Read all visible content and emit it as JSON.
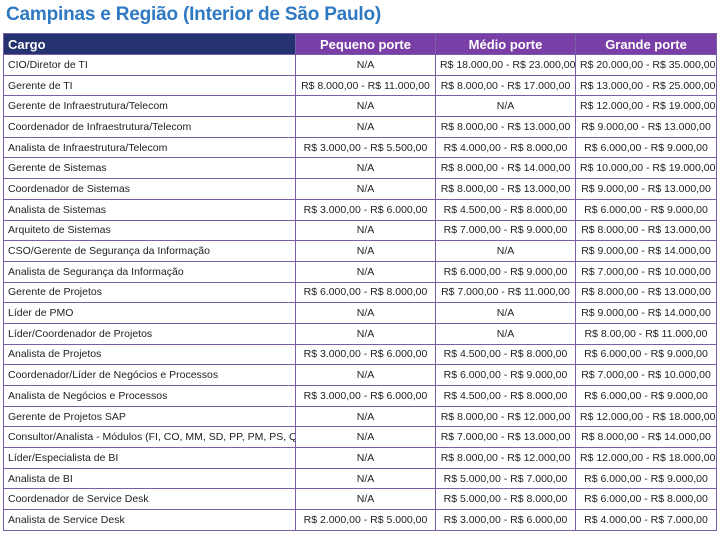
{
  "title": "Campinas e Região (Interior de São Paulo)",
  "colors": {
    "title": "#2f79c3",
    "header_cargo_bg": "#24336f",
    "header_size_bg": "#7a3fa6",
    "border": "#7a5fa8"
  },
  "table": {
    "headers": [
      "Cargo",
      "Pequeno porte",
      "Médio porte",
      "Grande porte"
    ],
    "rows": [
      [
        "CIO/Diretor de TI",
        "N/A",
        "R$ 18.000,00 - R$ 23.000,00",
        "R$ 20.000,00 - R$ 35.000,00"
      ],
      [
        "Gerente de TI",
        "R$ 8.000,00 - R$ 11.000,00",
        "R$ 8.000,00 - R$ 17.000,00",
        "R$ 13.000,00 - R$ 25.000,00"
      ],
      [
        "Gerente de Infraestrutura/Telecom",
        "N/A",
        "N/A",
        "R$ 12.000,00 - R$ 19.000,00"
      ],
      [
        "Coordenador de Infraestrutura/Telecom",
        "N/A",
        "R$ 8.000,00 - R$ 13.000,00",
        "R$ 9.000,00 - R$ 13.000,00"
      ],
      [
        "Analista de Infraestrutura/Telecom",
        "R$ 3.000,00 - R$ 5.500,00",
        "R$ 4.000,00 - R$ 8.000,00",
        "R$ 6.000,00 - R$ 9.000,00"
      ],
      [
        "Gerente de Sistemas",
        "N/A",
        "R$ 8.000,00 - R$ 14.000,00",
        "R$ 10.000,00 - R$ 19.000,00"
      ],
      [
        "Coordenador de Sistemas",
        "N/A",
        "R$ 8.000,00 - R$ 13.000,00",
        "R$ 9.000,00 - R$ 13.000,00"
      ],
      [
        "Analista de Sistemas",
        "R$ 3.000,00 - R$ 6.000,00",
        "R$ 4.500,00 - R$ 8.000,00",
        "R$ 6.000,00 - R$ 9.000,00"
      ],
      [
        "Arquiteto de Sistemas",
        "N/A",
        "R$ 7.000,00 - R$ 9.000,00",
        "R$ 8.000,00 - R$ 13.000,00"
      ],
      [
        "CSO/Gerente de Segurança da Informação",
        "N/A",
        "N/A",
        "R$ 9.000,00 - R$ 14.000,00"
      ],
      [
        "Analista de Segurança da Informação",
        "N/A",
        "R$ 6.000,00 - R$ 9.000,00",
        "R$ 7.000,00 - R$ 10.000,00"
      ],
      [
        "Gerente de Projetos",
        "R$ 6.000,00 - R$ 8.000,00",
        "R$ 7.000,00 - R$ 11.000,00",
        "R$ 8.000,00 - R$ 13.000,00"
      ],
      [
        "Líder de PMO",
        "N/A",
        "N/A",
        "R$ 9.000,00 - R$ 14.000,00"
      ],
      [
        "Líder/Coordenador de Projetos",
        "N/A",
        "N/A",
        "R$ 8.00,00 - R$ 11.000,00"
      ],
      [
        "Analista de Projetos",
        "R$ 3.000,00 - R$ 6.000,00",
        "R$ 4.500,00 - R$ 8.000,00",
        "R$ 6.000,00 - R$ 9.000,00"
      ],
      [
        "Coordenador/Líder de Negócios e Processos",
        "N/A",
        "R$ 6.000,00 - R$ 9.000,00",
        "R$ 7.000,00 - R$ 10.000,00"
      ],
      [
        "Analista de Negócios e Processos",
        "R$ 3.000,00 - R$ 6.000,00",
        "R$ 4.500,00 - R$ 8.000,00",
        "R$ 6.000,00 - R$ 9.000,00"
      ],
      [
        "Gerente de Projetos SAP",
        "N/A",
        "R$ 8.000,00 - R$ 12.000,00",
        "R$ 12.000,00 - R$ 18.000,00"
      ],
      [
        "Consultor/Analista - Módulos (FI, CO, MM, SD, PP, PM, PS, QM, HR, WM)",
        "N/A",
        "R$ 7.000,00 - R$ 13.000,00",
        "R$ 8.000,00 - R$ 14.000,00"
      ],
      [
        "Líder/Especialista de BI",
        "N/A",
        "R$ 8.000,00 - R$ 12.000,00",
        "R$ 12.000,00 - R$ 18.000,00"
      ],
      [
        "Analista de BI",
        "N/A",
        "R$ 5.000,00 - R$ 7.000,00",
        "R$ 6.000,00 - R$ 9.000,00"
      ],
      [
        "Coordenador de Service Desk",
        "N/A",
        "R$ 5.000,00 - R$ 8.000,00",
        "R$ 6.000,00 - R$ 8.000,00"
      ],
      [
        "Analista de Service Desk",
        "R$ 2.000,00 - R$ 5.000,00",
        "R$ 3.000,00 - R$ 6.000,00",
        "R$ 4.000,00 - R$ 7.000,00"
      ]
    ]
  }
}
